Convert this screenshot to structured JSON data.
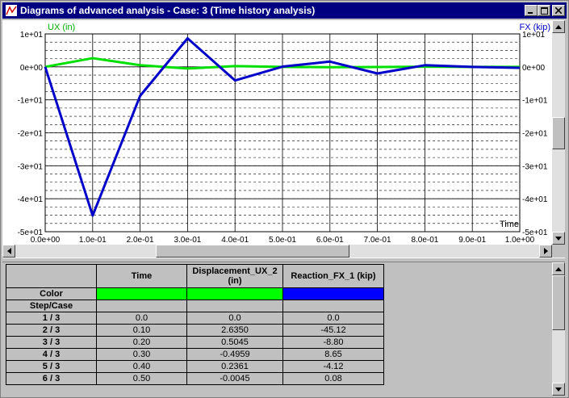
{
  "window": {
    "title": "Diagrams of advanced analysis - Case: 3 (Time history analysis)"
  },
  "colors": {
    "title_bg": "#000080",
    "series_ux": "#00e000",
    "series_fx": "#0000c8",
    "label_ux": "#00b000",
    "label_fx": "#0000c0"
  },
  "chart": {
    "left_axis_label": "UX (in)",
    "right_axis_label": "FX (kip)",
    "x_axis_label": "Time"
  },
  "chart_data": {
    "type": "line",
    "x": [
      0.0,
      0.1,
      0.2,
      0.3,
      0.4,
      0.5,
      0.6,
      0.7,
      0.8,
      0.9,
      1.0
    ],
    "x_ticks": [
      "0.0e+00",
      "1.0e-01",
      "2.0e-01",
      "3.0e-01",
      "4.0e-01",
      "5.0e-01",
      "6.0e-01",
      "7.0e-01",
      "8.0e-01",
      "9.0e-01",
      "1.0e+00"
    ],
    "y_ticks_left": [
      "1e+01",
      "0e+00",
      "-1e+01",
      "-2e+01",
      "-3e+01",
      "-4e+01",
      "-5e+01"
    ],
    "y_ticks_right": [
      "1e+01",
      "0e+00",
      "-1e+01",
      "-2e+01",
      "-3e+01",
      "-4e+01",
      "-5e+01"
    ],
    "y_tick_values": [
      10,
      0,
      -10,
      -20,
      -30,
      -40,
      -50
    ],
    "ylim": [
      -50,
      10
    ],
    "xlim": [
      0,
      1
    ],
    "grid": true,
    "series": [
      {
        "name": "UX (in)",
        "values": [
          0.0,
          2.635,
          0.5045,
          -0.4959,
          0.2361,
          -0.0045,
          -0.1,
          -0.05,
          0.05,
          0.0,
          0.0
        ]
      },
      {
        "name": "FX (kip)",
        "values": [
          0.0,
          -45.12,
          -8.8,
          8.65,
          -4.12,
          0.08,
          1.6,
          -2.0,
          0.5,
          0.0,
          -0.3
        ]
      }
    ]
  },
  "table": {
    "headers": [
      "Time",
      "Displacement_UX_2 (in)",
      "Reaction_FX_1 (kip)"
    ],
    "color_label": "Color",
    "step_label": "Step/Case",
    "header_colors": [
      "#00ff00",
      "#00ff00",
      "#0000ff"
    ],
    "rows": [
      {
        "step": "1 / 3",
        "time": "0.0",
        "ux": "0.0",
        "fx": "0.0"
      },
      {
        "step": "2 / 3",
        "time": "0.10",
        "ux": "2.6350",
        "fx": "-45.12"
      },
      {
        "step": "3 / 3",
        "time": "0.20",
        "ux": "0.5045",
        "fx": "-8.80"
      },
      {
        "step": "4 / 3",
        "time": "0.30",
        "ux": "-0.4959",
        "fx": "8.65"
      },
      {
        "step": "5 / 3",
        "time": "0.40",
        "ux": "0.2361",
        "fx": "-4.12"
      },
      {
        "step": "6 / 3",
        "time": "0.50",
        "ux": "-0.0045",
        "fx": "0.08"
      }
    ]
  }
}
